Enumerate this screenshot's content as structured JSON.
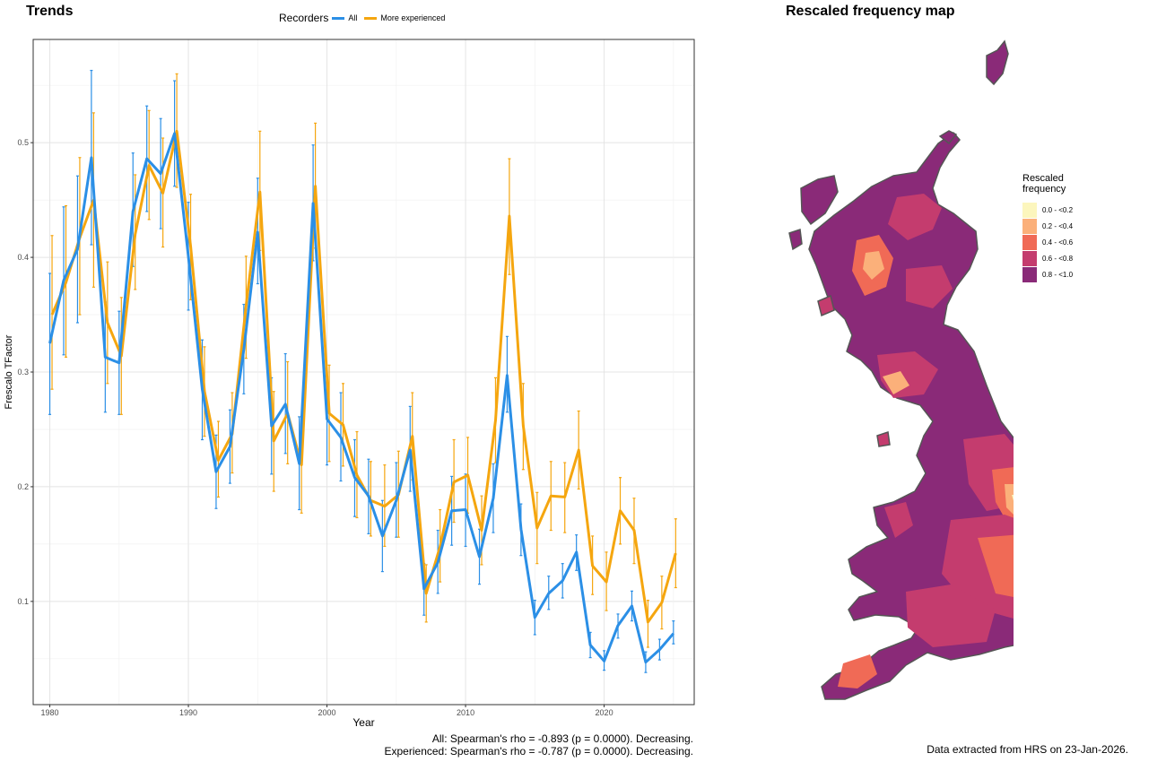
{
  "panels": {
    "trends_title": "Trends",
    "map_title": "Rescaled frequency map"
  },
  "legend": {
    "title": "Recorders",
    "items": [
      {
        "label": "All",
        "color": "#2b8fe6"
      },
      {
        "label": "More experienced",
        "color": "#f5a60f"
      }
    ]
  },
  "stats": {
    "all": "All: Spearman's rho = -0.893 (p = 0.0000). Decreasing.",
    "experienced": "Experienced: Spearman's rho = -0.787 (p = 0.0000). Decreasing."
  },
  "map_legend": {
    "title_line1": "Rescaled",
    "title_line2": "frequency",
    "bins": [
      {
        "label": "0.0 - <0.2",
        "color": "#fcf6bd"
      },
      {
        "label": "0.2 - <0.4",
        "color": "#fbb07a"
      },
      {
        "label": "0.4 - <0.6",
        "color": "#f06a56"
      },
      {
        "label": "0.6 - <0.8",
        "color": "#c43c6e"
      },
      {
        "label": "0.8 - <1.0",
        "color": "#8a2a78"
      }
    ]
  },
  "footer": "Data extracted from HRS on 23-Jan-2026.",
  "chart_data": {
    "type": "line",
    "xlabel": "Year",
    "ylabel": "Frescalo TFactor",
    "xlim": [
      1978.8,
      2026.5
    ],
    "ylim": [
      0.01,
      0.59
    ],
    "xticks": [
      1980,
      1990,
      2000,
      2010,
      2020
    ],
    "yticks": [
      0.1,
      0.2,
      0.3,
      0.4,
      0.5
    ],
    "grid": true,
    "legend_position": "top",
    "x": [
      1980,
      1981,
      1982,
      1983,
      1984,
      1985,
      1986,
      1987,
      1988,
      1989,
      1990,
      1991,
      1992,
      1993,
      1994,
      1995,
      1996,
      1997,
      1998,
      1999,
      2000,
      2001,
      2002,
      2003,
      2004,
      2005,
      2006,
      2007,
      2008,
      2009,
      2010,
      2011,
      2012,
      2013,
      2014,
      2015,
      2016,
      2017,
      2018,
      2019,
      2020,
      2021,
      2022,
      2023,
      2024,
      2025
    ],
    "series": [
      {
        "name": "All",
        "color": "#2b8fe6",
        "values": [
          0.325,
          0.38,
          0.407,
          0.487,
          0.313,
          0.308,
          0.44,
          0.486,
          0.473,
          0.508,
          0.401,
          0.285,
          0.213,
          0.235,
          0.32,
          0.422,
          0.253,
          0.272,
          0.22,
          0.447,
          0.259,
          0.243,
          0.208,
          0.192,
          0.157,
          0.188,
          0.232,
          0.111,
          0.134,
          0.179,
          0.18,
          0.139,
          0.19,
          0.297,
          0.163,
          0.086,
          0.107,
          0.118,
          0.143,
          0.062,
          0.048,
          0.079,
          0.096,
          0.047,
          0.058,
          0.072
        ],
        "lower": [
          0.263,
          0.315,
          0.343,
          0.411,
          0.265,
          0.263,
          0.392,
          0.44,
          0.425,
          0.462,
          0.354,
          0.241,
          0.181,
          0.203,
          0.281,
          0.377,
          0.211,
          0.229,
          0.18,
          0.397,
          0.219,
          0.205,
          0.174,
          0.159,
          0.126,
          0.156,
          0.196,
          0.088,
          0.107,
          0.149,
          0.148,
          0.115,
          0.16,
          0.265,
          0.14,
          0.071,
          0.093,
          0.103,
          0.127,
          0.051,
          0.04,
          0.068,
          0.083,
          0.038,
          0.049,
          0.063
        ],
        "upper": [
          0.386,
          0.444,
          0.471,
          0.563,
          0.361,
          0.353,
          0.491,
          0.532,
          0.521,
          0.554,
          0.448,
          0.328,
          0.245,
          0.267,
          0.359,
          0.469,
          0.295,
          0.316,
          0.261,
          0.498,
          0.296,
          0.282,
          0.241,
          0.224,
          0.188,
          0.221,
          0.27,
          0.133,
          0.162,
          0.209,
          0.211,
          0.163,
          0.22,
          0.331,
          0.185,
          0.101,
          0.122,
          0.133,
          0.158,
          0.073,
          0.057,
          0.089,
          0.109,
          0.056,
          0.067,
          0.083
        ]
      },
      {
        "name": "More experienced",
        "color": "#f5a60f",
        "values": [
          0.35,
          0.378,
          0.417,
          0.45,
          0.343,
          0.314,
          0.42,
          0.48,
          0.456,
          0.51,
          0.41,
          0.283,
          0.223,
          0.246,
          0.358,
          0.457,
          0.24,
          0.264,
          0.219,
          0.462,
          0.264,
          0.254,
          0.21,
          0.188,
          0.183,
          0.193,
          0.244,
          0.107,
          0.148,
          0.204,
          0.21,
          0.162,
          0.258,
          0.436,
          0.253,
          0.164,
          0.192,
          0.191,
          0.232,
          0.131,
          0.117,
          0.179,
          0.162,
          0.082,
          0.099,
          0.142
        ],
        "lower": [
          0.285,
          0.313,
          0.35,
          0.374,
          0.29,
          0.263,
          0.372,
          0.433,
          0.409,
          0.461,
          0.363,
          0.244,
          0.191,
          0.212,
          0.312,
          0.406,
          0.196,
          0.22,
          0.177,
          0.408,
          0.222,
          0.218,
          0.173,
          0.157,
          0.148,
          0.156,
          0.206,
          0.082,
          0.117,
          0.169,
          0.177,
          0.132,
          0.221,
          0.385,
          0.215,
          0.133,
          0.162,
          0.16,
          0.198,
          0.106,
          0.092,
          0.15,
          0.133,
          0.06,
          0.076,
          0.112
        ],
        "upper": [
          0.419,
          0.445,
          0.487,
          0.526,
          0.396,
          0.365,
          0.472,
          0.528,
          0.504,
          0.56,
          0.455,
          0.322,
          0.257,
          0.282,
          0.401,
          0.51,
          0.283,
          0.309,
          0.261,
          0.517,
          0.306,
          0.29,
          0.248,
          0.222,
          0.219,
          0.231,
          0.282,
          0.132,
          0.18,
          0.241,
          0.243,
          0.192,
          0.295,
          0.486,
          0.29,
          0.195,
          0.222,
          0.221,
          0.266,
          0.157,
          0.143,
          0.208,
          0.19,
          0.101,
          0.122,
          0.172
        ]
      }
    ]
  }
}
